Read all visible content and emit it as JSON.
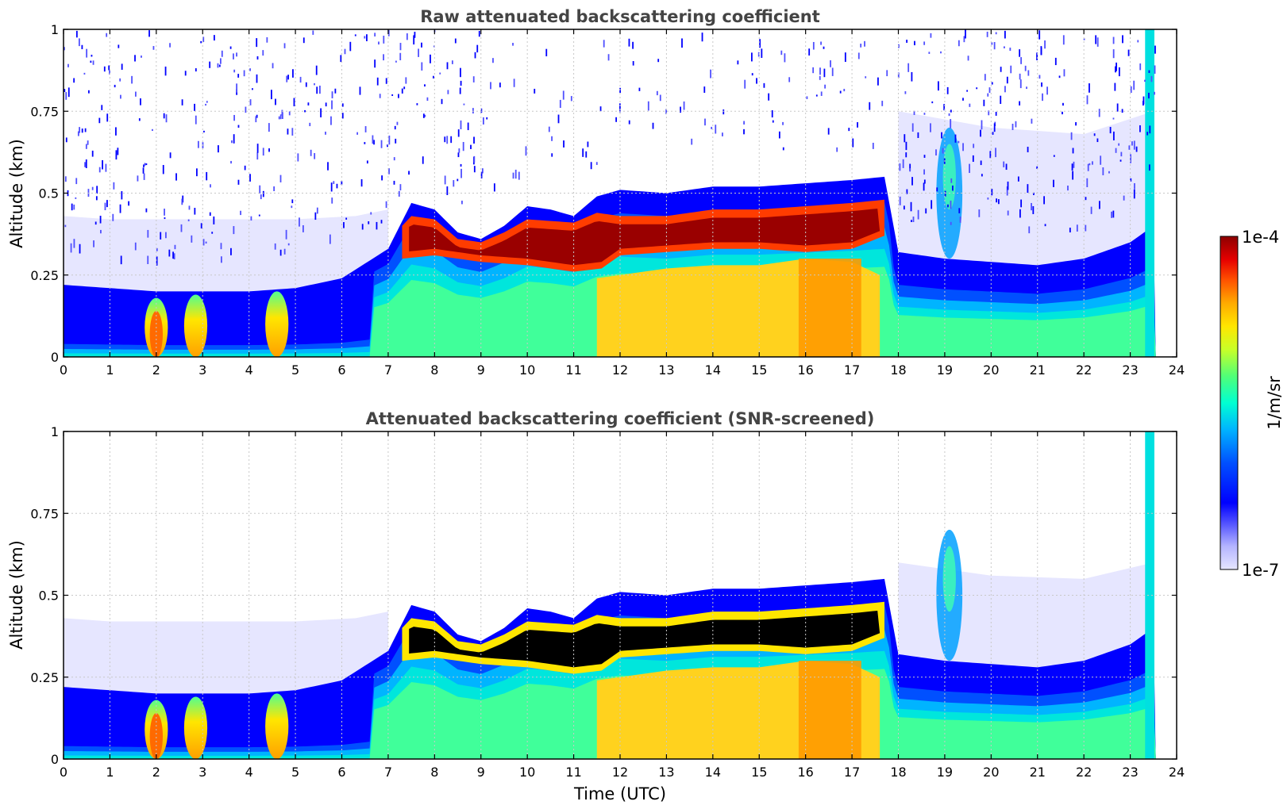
{
  "chart_data": [
    {
      "type": "heatmap",
      "title": "Raw attenuated backscattering coefficient",
      "xlabel": "",
      "ylabel": "Altitude (km)",
      "xlim": [
        0,
        24
      ],
      "ylim": [
        0,
        1
      ],
      "x_ticks": [
        "0",
        "1",
        "2",
        "3",
        "4",
        "5",
        "6",
        "7",
        "8",
        "9",
        "10",
        "11",
        "12",
        "13",
        "14",
        "15",
        "16",
        "17",
        "18",
        "19",
        "20",
        "21",
        "22",
        "23",
        "24"
      ],
      "y_ticks": [
        "0",
        "0.25",
        "0.5",
        "0.75",
        "1"
      ],
      "grid": true,
      "boundary_layer_top_km": [
        [
          0,
          0.22
        ],
        [
          1,
          0.21
        ],
        [
          2,
          0.2
        ],
        [
          3,
          0.2
        ],
        [
          4,
          0.2
        ],
        [
          5,
          0.21
        ],
        [
          6,
          0.24
        ],
        [
          7,
          0.33
        ],
        [
          7.5,
          0.47
        ],
        [
          8,
          0.45
        ],
        [
          8.5,
          0.38
        ],
        [
          9,
          0.36
        ],
        [
          9.5,
          0.4
        ],
        [
          10,
          0.46
        ],
        [
          10.5,
          0.45
        ],
        [
          11,
          0.43
        ],
        [
          11.5,
          0.49
        ],
        [
          12,
          0.51
        ],
        [
          13,
          0.5
        ],
        [
          14,
          0.52
        ],
        [
          15,
          0.52
        ],
        [
          16,
          0.53
        ],
        [
          17,
          0.54
        ],
        [
          17.7,
          0.55
        ],
        [
          18,
          0.32
        ],
        [
          19,
          0.3
        ],
        [
          20,
          0.29
        ],
        [
          21,
          0.28
        ],
        [
          22,
          0.3
        ],
        [
          23,
          0.35
        ],
        [
          23.5,
          0.4
        ]
      ],
      "dense_layer_km": {
        "start": 7.3,
        "end": 17.7,
        "bottom": 0.29,
        "top": 0.43
      }
    },
    {
      "type": "heatmap",
      "title": "Attenuated backscattering coefficient (SNR-screened)",
      "xlabel": "Time (UTC)",
      "ylabel": "Altitude (km)",
      "xlim": [
        0,
        24
      ],
      "ylim": [
        0,
        1
      ],
      "x_ticks": [
        "0",
        "1",
        "2",
        "3",
        "4",
        "5",
        "6",
        "7",
        "8",
        "9",
        "10",
        "11",
        "12",
        "13",
        "14",
        "15",
        "16",
        "17",
        "18",
        "19",
        "20",
        "21",
        "22",
        "23",
        "24"
      ],
      "y_ticks": [
        "0",
        "0.25",
        "0.5",
        "0.75",
        "1"
      ],
      "grid": true
    }
  ],
  "colorbar": {
    "label": "1/m/sr",
    "min_label": "1e-7",
    "max_label": "1e-4",
    "colors": [
      "#e6e6ff",
      "#b4b4ff",
      "#5050ff",
      "#0000ff",
      "#0050ff",
      "#00b4ff",
      "#00ffd2",
      "#50ff78",
      "#c8ff28",
      "#ffe600",
      "#ffaa00",
      "#ff5000",
      "#e60000",
      "#8c0000"
    ]
  }
}
